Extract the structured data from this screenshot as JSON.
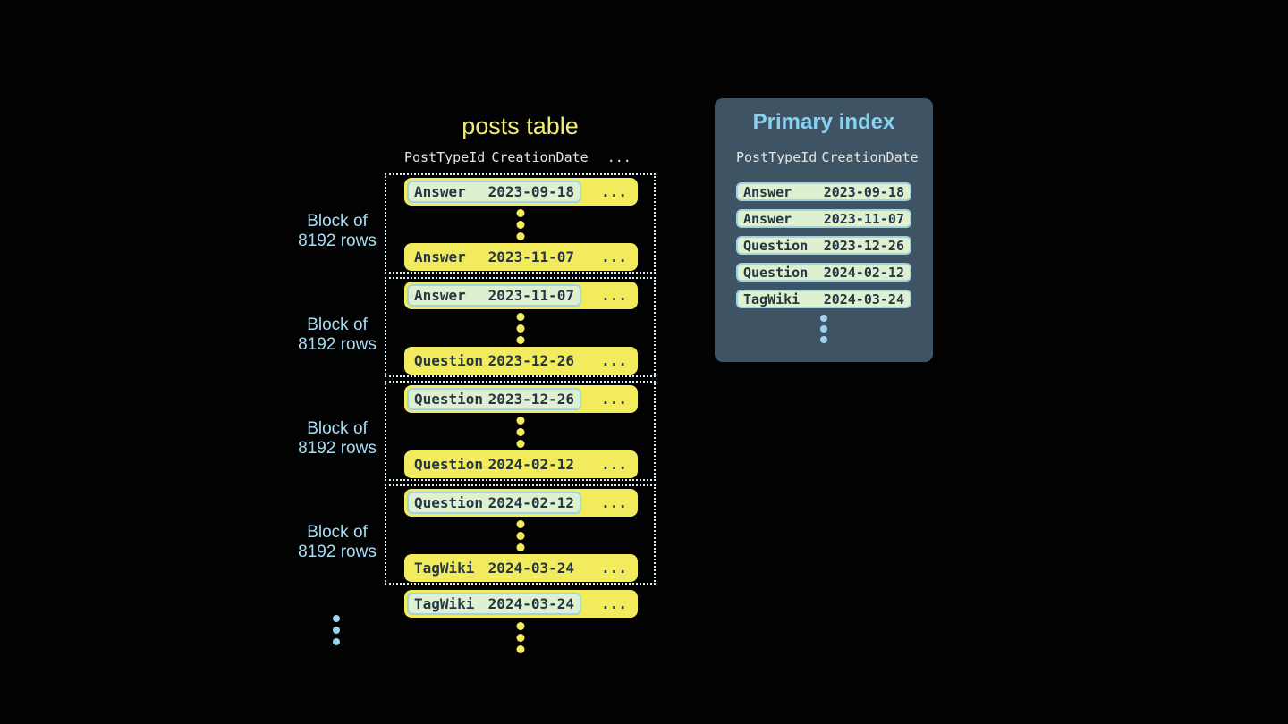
{
  "posts_table": {
    "title": "posts table",
    "headers": {
      "col1": "PostTypeId",
      "col2": "CreationDate",
      "more": "..."
    },
    "block_label_line1": "Block of",
    "block_label_line2": "8192 rows",
    "ellipsis": "...",
    "blocks": [
      {
        "first": {
          "type": "Answer",
          "date": "2023-09-18"
        },
        "last": {
          "type": "Answer",
          "date": "2023-11-07"
        }
      },
      {
        "first": {
          "type": "Answer",
          "date": "2023-11-07"
        },
        "last": {
          "type": "Question",
          "date": "2023-12-26"
        }
      },
      {
        "first": {
          "type": "Question",
          "date": "2023-12-26"
        },
        "last": {
          "type": "Question",
          "date": "2024-02-12"
        }
      },
      {
        "first": {
          "type": "Question",
          "date": "2024-02-12"
        },
        "last": {
          "type": "TagWiki",
          "date": "2024-03-24"
        }
      }
    ],
    "tail_row": {
      "type": "TagWiki",
      "date": "2024-03-24"
    }
  },
  "primary_index": {
    "title": "Primary index",
    "headers": {
      "col1": "PostTypeId",
      "col2": "CreationDate"
    },
    "rows": [
      {
        "type": "Answer",
        "date": "2023-09-18"
      },
      {
        "type": "Answer",
        "date": "2023-11-07"
      },
      {
        "type": "Question",
        "date": "2023-12-26"
      },
      {
        "type": "Question",
        "date": "2024-02-12"
      },
      {
        "type": "TagWiki",
        "date": "2024-03-24"
      }
    ]
  },
  "colors": {
    "background": "#020203",
    "row_yellow": "#f2eb5e",
    "highlight_green": "#dff0d0",
    "highlight_border": "#9fd3e5",
    "block_dotted_border": "#d6edf6",
    "block_label_blue": "#a8ddf4",
    "panel_background": "#3e5465",
    "panel_title_blue": "#86d2ef",
    "dark_text": "#263645",
    "dot_blue": "#9fd4ee"
  }
}
